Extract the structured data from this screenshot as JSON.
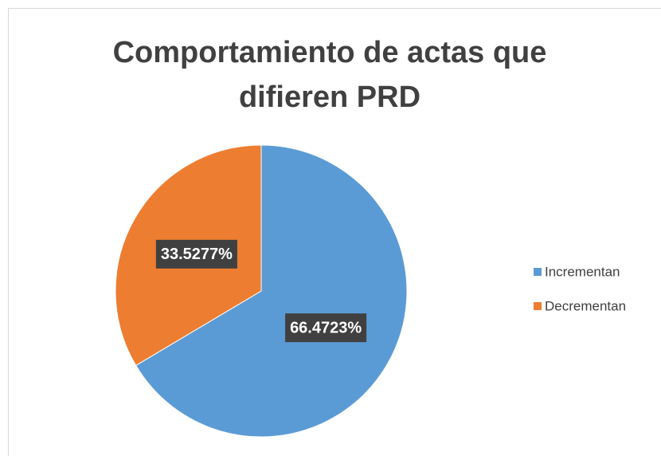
{
  "chart_data": {
    "type": "pie",
    "title": "Comportamiento de actas que difieren PRD",
    "categories": [
      "Incrementan",
      "Decrementan"
    ],
    "values": [
      66.4723,
      33.5277
    ],
    "value_labels": [
      "66.4723%",
      "33.5277%"
    ],
    "colors": [
      "#5b9bd5",
      "#ed7d31"
    ],
    "legend": "right"
  }
}
